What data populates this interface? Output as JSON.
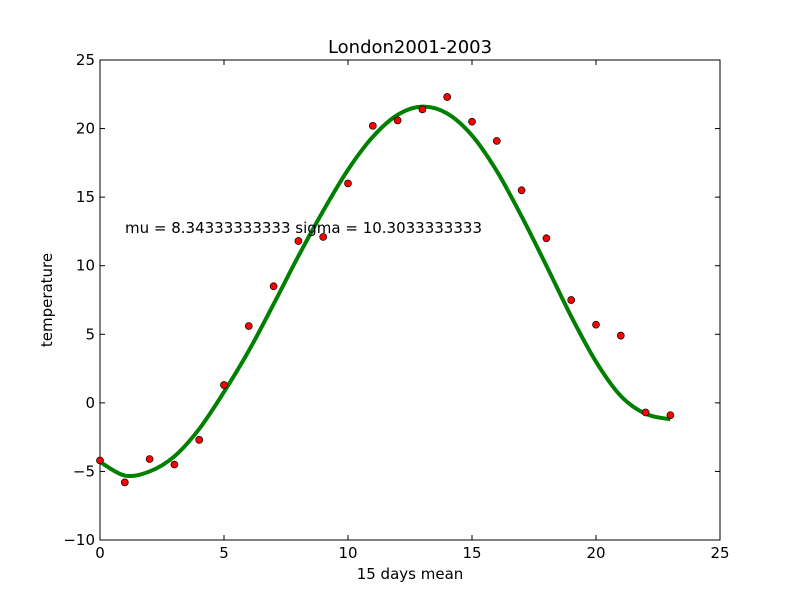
{
  "chart_data": {
    "type": "scatter",
    "title": "London2001-2003",
    "xlabel": "15 days mean",
    "ylabel": "temperature",
    "xlim": [
      0,
      25
    ],
    "ylim": [
      -10,
      25
    ],
    "xticks": [
      0,
      5,
      10,
      15,
      20,
      25
    ],
    "yticks": [
      -10,
      -5,
      0,
      5,
      10,
      15,
      20,
      25
    ],
    "xtick_labels": [
      "0",
      "5",
      "10",
      "15",
      "20",
      "25"
    ],
    "ytick_labels": [
      "−10",
      "−5",
      "0",
      "5",
      "10",
      "15",
      "20",
      "25"
    ],
    "grid": false,
    "annotation": "mu = 8.34333333333 sigma = 10.3033333333",
    "series": [
      {
        "kind": "scatter",
        "color": "#ff0000",
        "points": [
          [
            0,
            -4.2
          ],
          [
            1,
            -5.8
          ],
          [
            2,
            -4.1
          ],
          [
            3,
            -4.5
          ],
          [
            4,
            -2.7
          ],
          [
            5,
            1.3
          ],
          [
            6,
            5.6
          ],
          [
            7,
            8.5
          ],
          [
            8,
            11.8
          ],
          [
            9,
            12.1
          ],
          [
            10,
            16.0
          ],
          [
            11,
            20.2
          ],
          [
            12,
            20.6
          ],
          [
            13,
            21.4
          ],
          [
            14,
            22.3
          ],
          [
            15,
            20.5
          ],
          [
            16,
            19.1
          ],
          [
            17,
            15.5
          ],
          [
            18,
            12.0
          ],
          [
            19,
            7.5
          ],
          [
            20,
            5.7
          ],
          [
            21,
            4.9
          ],
          [
            22,
            -0.7
          ],
          [
            23,
            -0.9
          ]
        ]
      },
      {
        "kind": "line",
        "color": "#008000",
        "points": [
          [
            0,
            -4.3
          ],
          [
            1,
            -5.3
          ],
          [
            2,
            -5.0
          ],
          [
            3,
            -3.9
          ],
          [
            4,
            -1.9
          ],
          [
            5,
            0.8
          ],
          [
            6,
            3.8
          ],
          [
            7,
            7.2
          ],
          [
            8,
            10.7
          ],
          [
            9,
            14.0
          ],
          [
            10,
            17.0
          ],
          [
            11,
            19.4
          ],
          [
            12,
            21.0
          ],
          [
            13,
            21.6
          ],
          [
            14,
            21.1
          ],
          [
            15,
            19.5
          ],
          [
            16,
            16.9
          ],
          [
            17,
            13.6
          ],
          [
            18,
            10.0
          ],
          [
            19,
            6.3
          ],
          [
            20,
            3.0
          ],
          [
            21,
            0.5
          ],
          [
            22,
            -0.8
          ],
          [
            23,
            -1.2
          ]
        ]
      }
    ]
  }
}
